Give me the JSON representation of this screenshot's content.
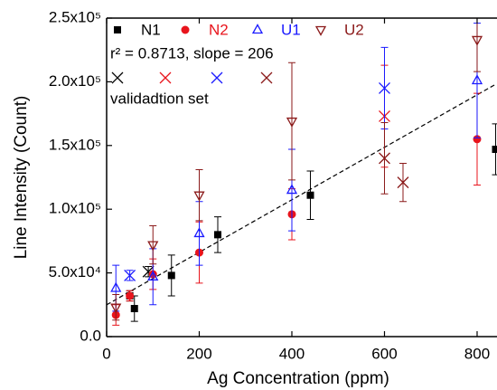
{
  "chart_data": {
    "type": "scatter",
    "x_label": "Ag Concentration (ppm)",
    "y_label": "Line Intensity (Count)",
    "xlim": [
      0,
      841
    ],
    "ylim": [
      0,
      250000
    ],
    "xticks": [
      0,
      200,
      400,
      600,
      800
    ],
    "yticks": [
      {
        "value": 0,
        "label": "0.0"
      },
      {
        "value": 50000,
        "label": "5.0x10⁴"
      },
      {
        "value": 100000,
        "label": "1.0x10⁵"
      },
      {
        "value": 150000,
        "label": "1.5x10⁵"
      },
      {
        "value": 200000,
        "label": "2.0x10⁵"
      },
      {
        "value": 250000,
        "label": "2.5x10⁵"
      }
    ],
    "series": [
      {
        "name": "N1",
        "color": "#000000",
        "marker": "square",
        "x": [
          50,
          60,
          140,
          240,
          440,
          840
        ],
        "values": [
          32000,
          22000,
          48000,
          80000,
          111000,
          147000
        ],
        "errors": [
          4000,
          10000,
          16000,
          14000,
          19000,
          20000
        ]
      },
      {
        "name": "N2",
        "color": "#e8141c",
        "marker": "circle",
        "x": [
          20,
          50,
          100,
          200,
          400,
          800
        ],
        "values": [
          17000,
          32000,
          49000,
          66000,
          96000,
          155000
        ],
        "errors": [
          8000,
          4000,
          12000,
          24000,
          20000,
          36000
        ]
      },
      {
        "name": "U1",
        "color": "#1a1aff",
        "marker": "triangle-up",
        "x": [
          20,
          100,
          200,
          400,
          800
        ],
        "values": [
          38000,
          47000,
          81000,
          115000,
          201000
        ],
        "errors": [
          18000,
          22000,
          25000,
          32000,
          45000
        ]
      },
      {
        "name": "U2",
        "color": "#8b1a1a",
        "marker": "triangle-down",
        "x": [
          20,
          100,
          200,
          400,
          800
        ],
        "values": [
          23000,
          72000,
          111000,
          169000,
          233000
        ],
        "errors": [
          10000,
          15000,
          20000,
          46000,
          25000
        ]
      }
    ],
    "validation": {
      "label": "validadtion set",
      "series": [
        {
          "color": "#000000",
          "marker": "x",
          "x": [
            90
          ],
          "values": [
            51000
          ],
          "errors": [
            4000
          ]
        },
        {
          "color": "#e8141c",
          "marker": "x",
          "x": [
            600
          ],
          "values": [
            173000
          ],
          "errors": [
            40000
          ]
        },
        {
          "color": "#1a1aff",
          "marker": "x",
          "x": [
            50,
            600
          ],
          "values": [
            48000,
            195000
          ],
          "errors": [
            4000,
            32000
          ]
        },
        {
          "color": "#8b1a1a",
          "marker": "x",
          "x": [
            600,
            640
          ],
          "values": [
            140000,
            121000
          ],
          "errors": [
            28000,
            15000
          ]
        }
      ]
    },
    "fit": {
      "label": "r² = 0.8713, slope = 206",
      "slope": 206,
      "intercept": 25000
    }
  }
}
